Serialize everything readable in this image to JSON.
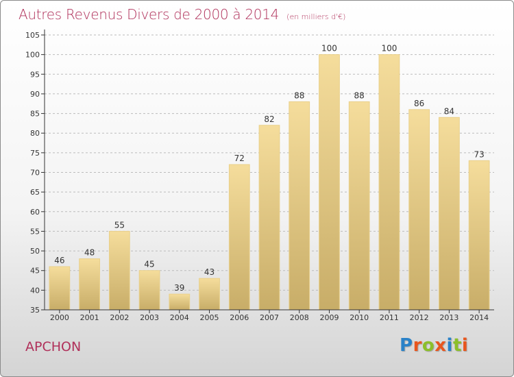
{
  "header": {
    "title": "Autres Revenus Divers de 2000 à 2014",
    "subtitle": "(en milliers d'€)"
  },
  "footer": {
    "commune": "APCHON",
    "logo_letters": [
      "P",
      "r",
      "o",
      "x",
      "i",
      "t",
      "i"
    ],
    "logo_colors": [
      "#2a82c8",
      "#e8561e",
      "#8cbf2a",
      "#e8561e",
      "#2a82c8",
      "#8cbf2a",
      "#e8561e"
    ]
  },
  "colors": {
    "title": "#b0305a",
    "bar_light": "#f5dd9c",
    "bar_dark": "#c8ad68",
    "grid": "#bbbbbb"
  },
  "chart_data": {
    "type": "bar",
    "title": "Autres Revenus Divers de 2000 à 2014",
    "subtitle": "(en milliers d'€)",
    "categories": [
      "2000",
      "2001",
      "2002",
      "2003",
      "2004",
      "2005",
      "2006",
      "2007",
      "2008",
      "2009",
      "2010",
      "2011",
      "2012",
      "2013",
      "2014"
    ],
    "values": [
      46,
      48,
      55,
      45,
      39,
      43,
      72,
      82,
      88,
      100,
      88,
      100,
      86,
      84,
      73
    ],
    "ylim": [
      35,
      105
    ],
    "yticks": [
      35,
      40,
      45,
      50,
      55,
      60,
      65,
      70,
      75,
      80,
      85,
      90,
      95,
      100,
      105
    ],
    "xlabel": "",
    "ylabel": "",
    "grid": true,
    "data_labels": true
  }
}
